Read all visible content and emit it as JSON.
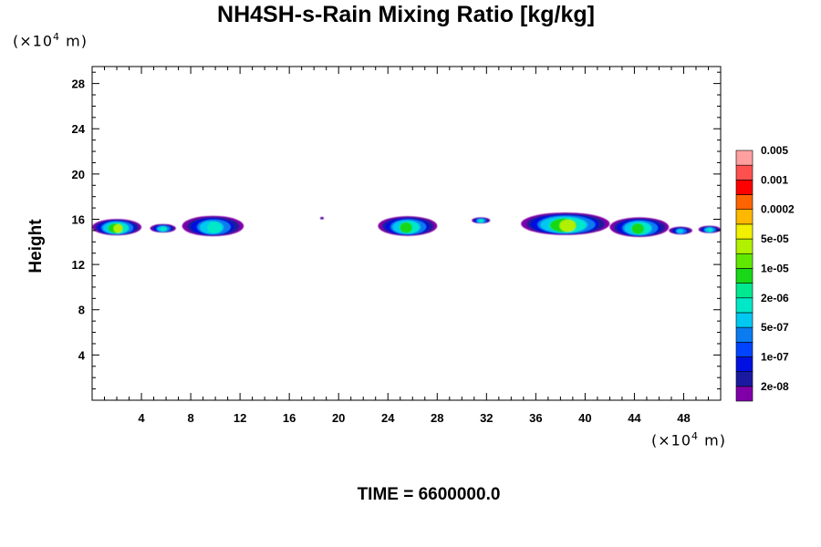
{
  "chart_data": {
    "type": "heatmap",
    "title": "NH4SH-s-Rain Mixing Ratio [kg/kg]",
    "ylabel": "Height",
    "x_unit": "(×10⁴ m)",
    "y_unit": "(×10⁴ m)",
    "xlim": [
      0,
      51
    ],
    "ylim": [
      0,
      29.5
    ],
    "x_ticks": [
      4,
      8,
      12,
      16,
      20,
      24,
      28,
      32,
      36,
      40,
      44,
      48
    ],
    "y_ticks": [
      4,
      8,
      12,
      16,
      20,
      24,
      28
    ],
    "colorbar": {
      "labels": [
        "2e-08",
        "1e-07",
        "5e-07",
        "2e-06",
        "1e-05",
        "5e-05",
        "0.0002",
        "0.001",
        "0.005"
      ],
      "colors": [
        "#7f00a8",
        "#1a1aa0",
        "#0010e0",
        "#0044ff",
        "#0a7cf0",
        "#00c8f0",
        "#00e8c8",
        "#00e890",
        "#18d818",
        "#60e800",
        "#b0f000",
        "#f0f000",
        "#ffb800",
        "#ff6400",
        "#ff0000",
        "#ff5050",
        "#ffa0a0"
      ]
    },
    "features": [
      {
        "x_range": [
          0,
          4
        ],
        "y_center": 15.3,
        "peak": "1e-05"
      },
      {
        "x_range": [
          4.7,
          6.8
        ],
        "y_center": 15.2,
        "peak": "2e-06"
      },
      {
        "x_range": [
          7.3,
          12.3
        ],
        "y_center": 15.4,
        "peak": "2e-06"
      },
      {
        "x_range": [
          18.5,
          18.8
        ],
        "y_center": 16.1,
        "peak": "2e-08"
      },
      {
        "x_range": [
          23.2,
          28.0
        ],
        "y_center": 15.4,
        "peak": "5e-06"
      },
      {
        "x_range": [
          30.8,
          32.3
        ],
        "y_center": 15.9,
        "peak": "2e-06"
      },
      {
        "x_range": [
          34.8,
          42.0
        ],
        "y_center": 15.6,
        "peak": "1e-05"
      },
      {
        "x_range": [
          42.0,
          46.8
        ],
        "y_center": 15.3,
        "peak": "5e-06"
      },
      {
        "x_range": [
          46.8,
          48.7
        ],
        "y_center": 15.0,
        "peak": "5e-07"
      },
      {
        "x_range": [
          49.2,
          51.0
        ],
        "y_center": 15.1,
        "peak": "2e-06"
      }
    ],
    "grid": false,
    "legend": "colorbar-right"
  },
  "footer": {
    "time_label": "TIME = 6600000.0"
  }
}
